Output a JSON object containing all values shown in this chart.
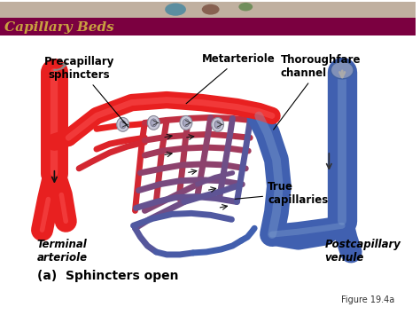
{
  "title": "Capillary Beds",
  "title_bg_color": "#7B0040",
  "title_text_color": "#C8A040",
  "bg_color": "#FFFFFF",
  "red": "#E82020",
  "red_dark": "#CC0000",
  "red_light": "#FF6060",
  "blue": "#4060B0",
  "blue_dark": "#2040A0",
  "blue_light": "#80A0D0",
  "gray": "#AAAAAA",
  "purple": "#883060",
  "label_color": "#000000",
  "subtitle": "(a)  Sphincters open",
  "figure_label": "Figure 19.4a",
  "labels": {
    "precapillary": "Precapillary\nsphincters",
    "metarteriole": "Metarteriole",
    "thoroughfare": "Thoroughfare\nchannel",
    "true_cap": "True\ncapillaries",
    "terminal": "Terminal\narteriole",
    "postcapillary": "Postcapillary\nvenule"
  }
}
